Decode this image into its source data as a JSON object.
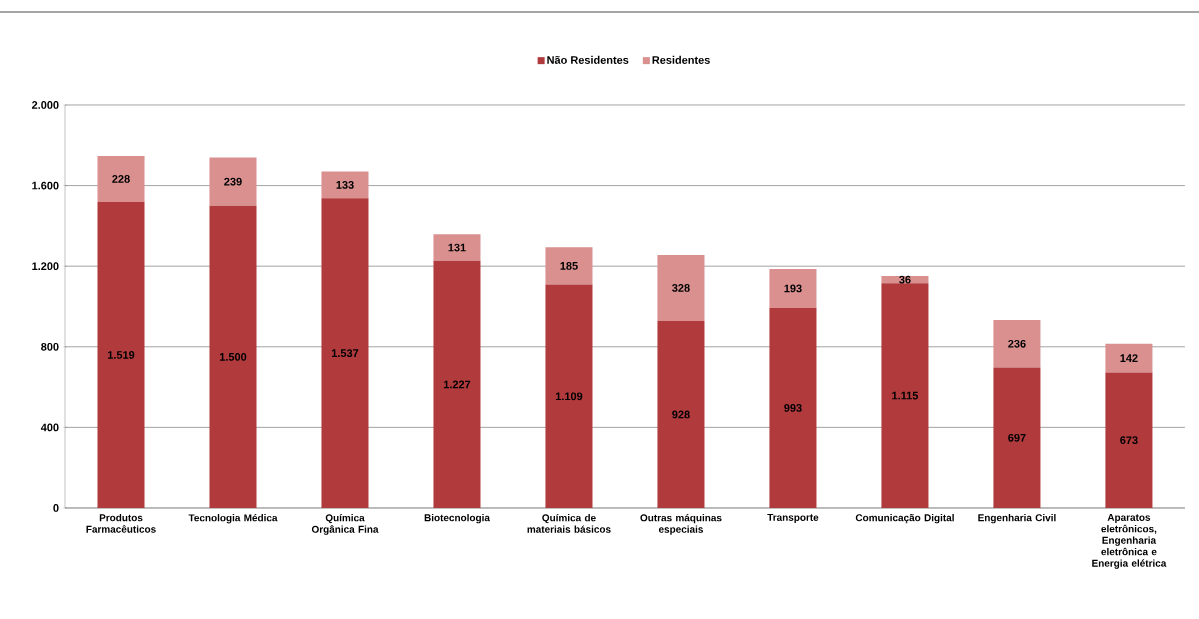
{
  "chart_data": {
    "type": "bar",
    "stacked": true,
    "categories": [
      "Produtos Farmacêuticos",
      "Tecnologia Médica",
      "Química Orgânica Fina",
      "Biotecnologia",
      "Química de materiais básicos",
      "Outras máquinas especiais",
      "Transporte",
      "Comunicação Digital",
      "Engenharia Civil",
      "Aparatos eletrônicos, Engenharia eletrônica e Energia elétrica"
    ],
    "series": [
      {
        "name": "Não Residentes",
        "color": "#b03a3c",
        "values": [
          1519,
          1500,
          1537,
          1227,
          1109,
          928,
          993,
          1115,
          697,
          673
        ],
        "value_labels": [
          "1.519",
          "1.500",
          "1.537",
          "1.227",
          "1.109",
          "928",
          "993",
          "1.115",
          "697",
          "673"
        ]
      },
      {
        "name": "Residentes",
        "color": "#d9908f",
        "values": [
          228,
          239,
          133,
          131,
          185,
          328,
          193,
          36,
          236,
          142
        ],
        "value_labels": [
          "228",
          "239",
          "133",
          "131",
          "185",
          "328",
          "193",
          "36",
          "236",
          "142"
        ]
      }
    ],
    "ylim": [
      0,
      2000
    ],
    "yticks": [
      0,
      {
        "value": 400,
        "label": "400"
      },
      {
        "value": 800,
        "label": "800"
      },
      {
        "value": 1200,
        "label": "1.200"
      },
      {
        "value": 1600,
        "label": "1.600"
      },
      {
        "value": 2000,
        "label": "2.000"
      }
    ],
    "grid": "y",
    "legend": "top"
  }
}
